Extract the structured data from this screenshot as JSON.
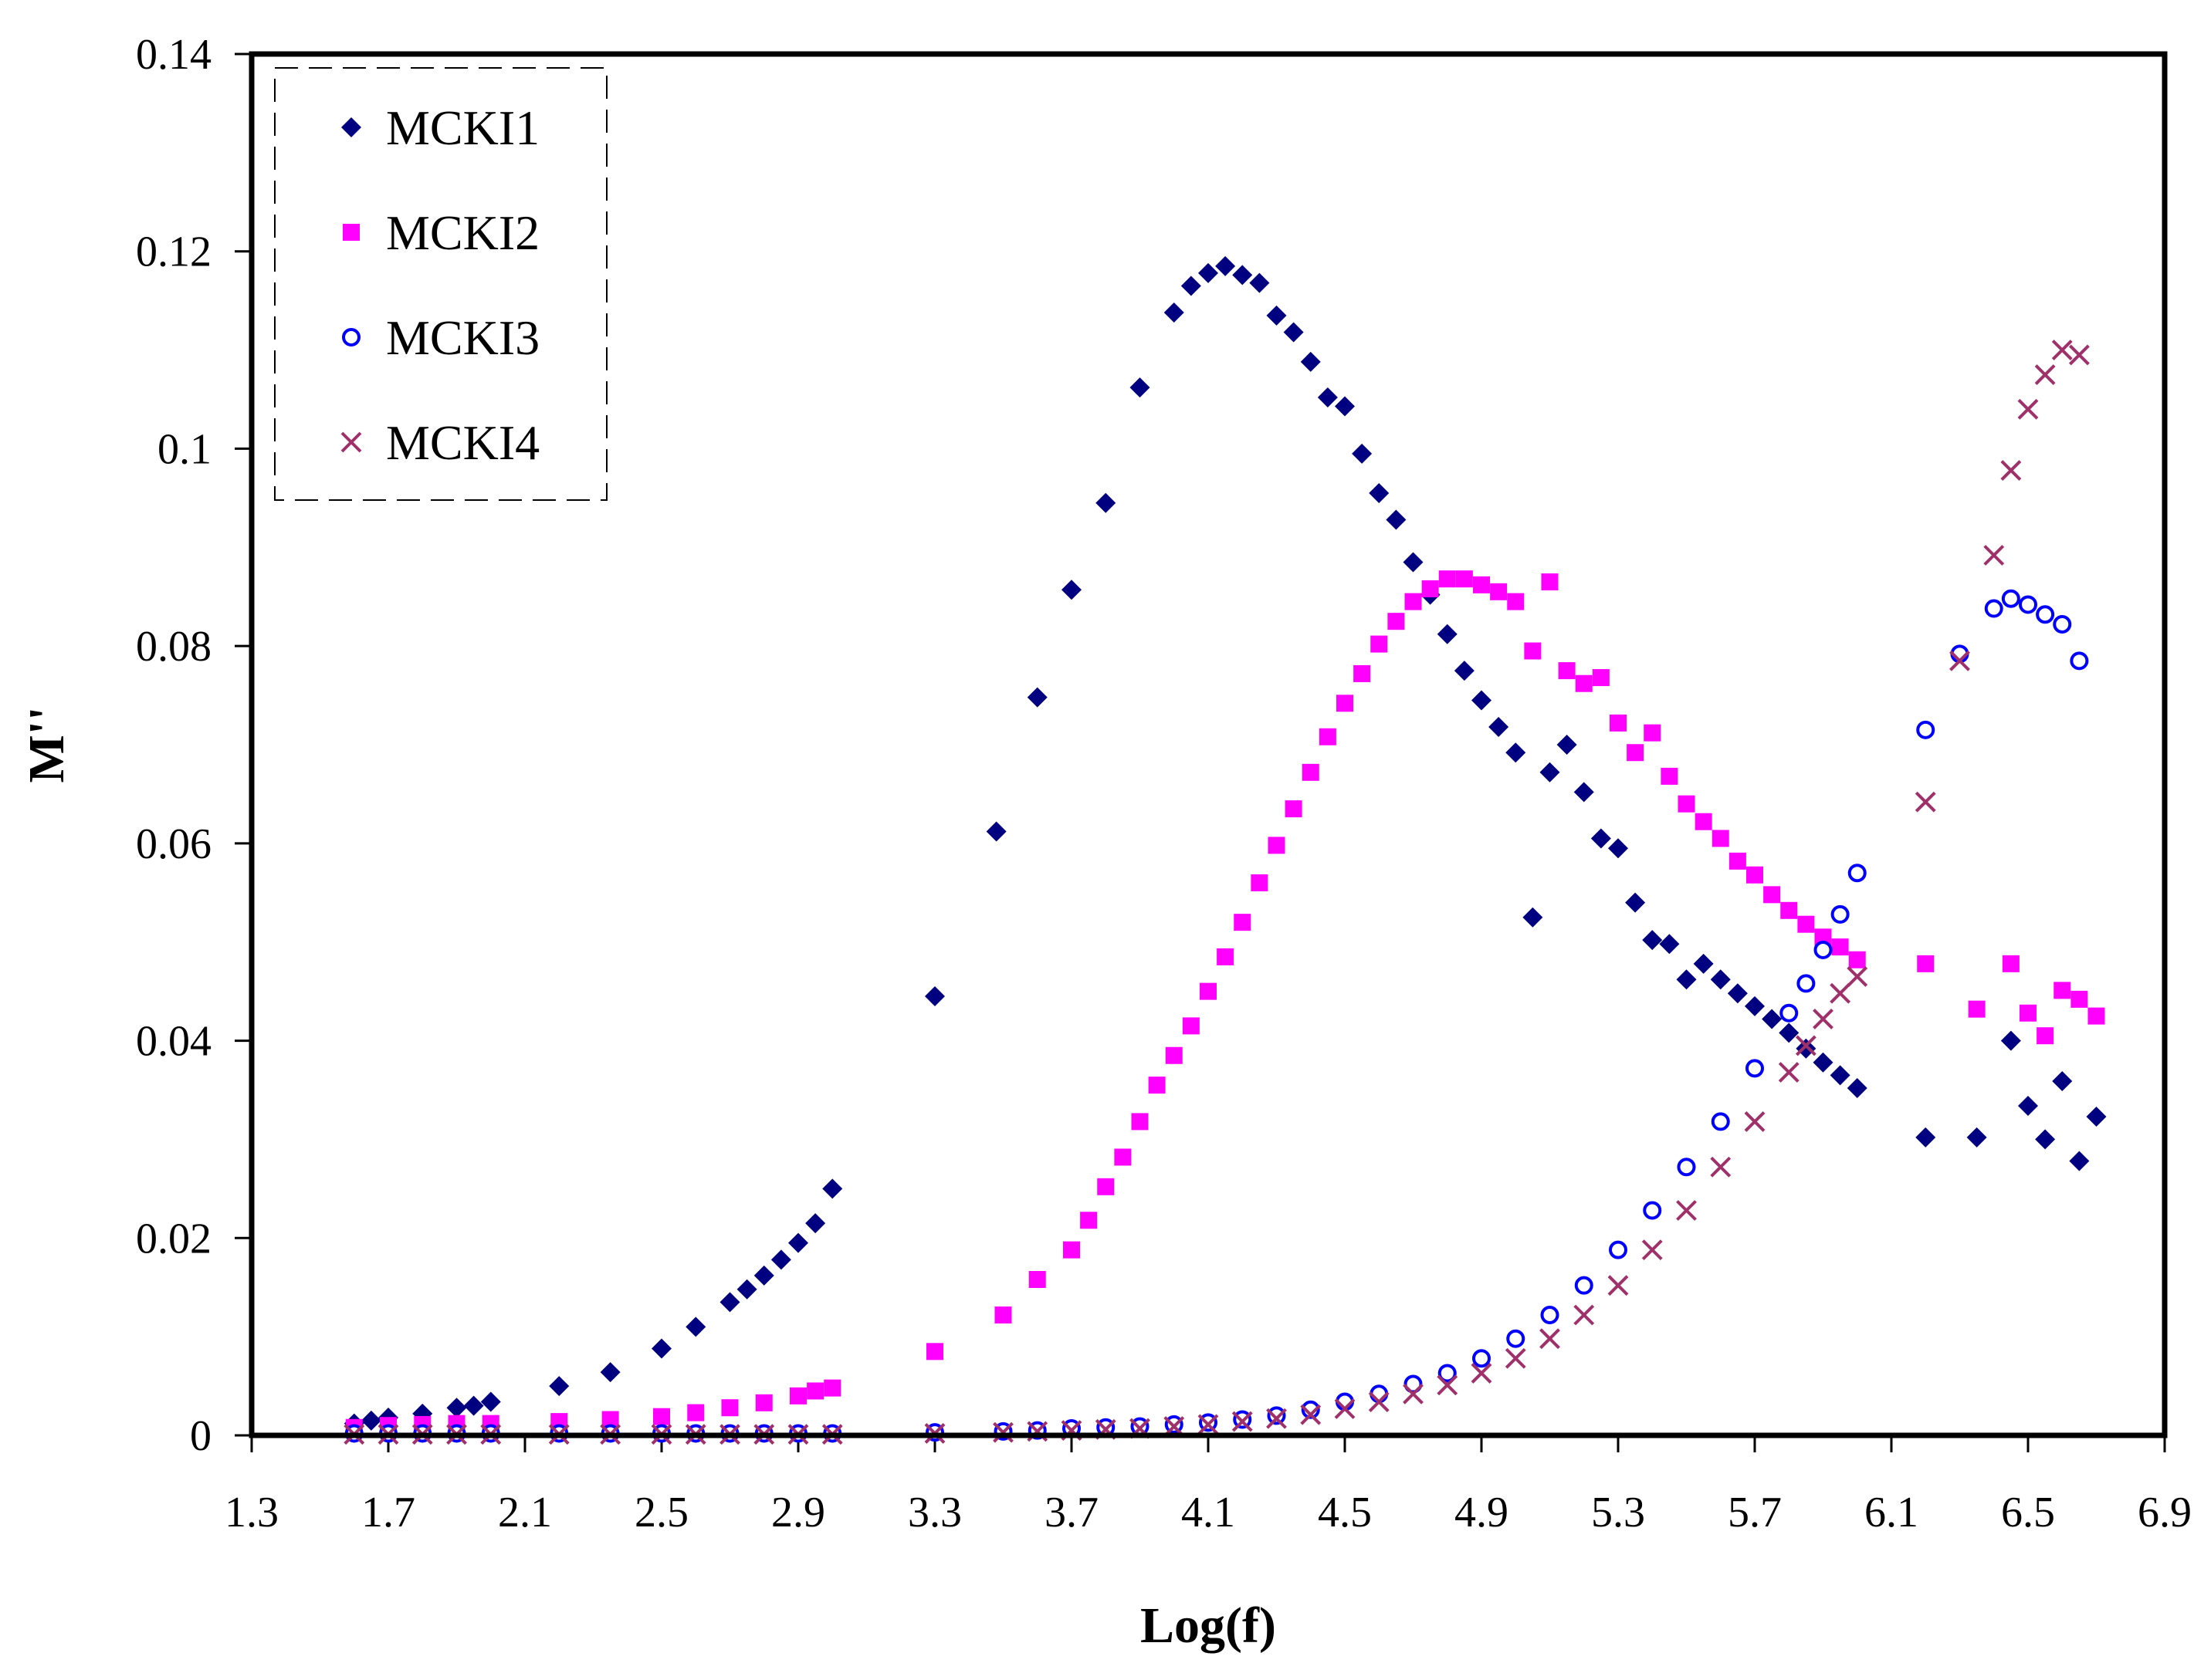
{
  "chart_data": {
    "type": "scatter",
    "title": "",
    "xlabel": "Log(f)",
    "ylabel": "M''",
    "xlim": [
      1.3,
      6.9
    ],
    "ylim": [
      0,
      0.14
    ],
    "x_ticks": [
      "1.3",
      "1.7",
      "2.1",
      "2.5",
      "2.9",
      "3.3",
      "3.7",
      "4.1",
      "4.5",
      "4.9",
      "5.3",
      "5.7",
      "6.1",
      "6.5",
      "6.9"
    ],
    "y_ticks": [
      "0",
      "0.02",
      "0.04",
      "0.06",
      "0.08",
      "0.1",
      "0.12",
      "0.14"
    ],
    "legend_position": "top-left",
    "series": [
      {
        "name": "MCKI1",
        "marker": "diamond",
        "color": "#000080",
        "x": [
          1.6,
          1.65,
          1.7,
          1.8,
          1.9,
          1.95,
          2.0,
          2.2,
          2.35,
          2.5,
          2.6,
          2.7,
          2.75,
          2.8,
          2.85,
          2.9,
          2.95,
          3.0,
          3.3,
          3.48,
          3.6,
          3.7,
          3.8,
          3.9,
          4.0,
          4.05,
          4.1,
          4.15,
          4.2,
          4.25,
          4.3,
          4.35,
          4.4,
          4.45,
          4.5,
          4.55,
          4.6,
          4.65,
          4.7,
          4.75,
          4.8,
          4.85,
          4.9,
          4.95,
          5.0,
          5.05,
          5.1,
          5.15,
          5.2,
          5.25,
          5.3,
          5.35,
          5.4,
          5.45,
          5.5,
          5.55,
          5.6,
          5.65,
          5.7,
          5.75,
          5.8,
          5.85,
          5.9,
          5.95,
          6.0,
          6.2,
          6.35,
          6.45,
          6.5,
          6.55,
          6.6,
          6.65,
          6.7
        ],
        "y": [
          0.0012,
          0.0015,
          0.0018,
          0.0022,
          0.0028,
          0.003,
          0.0034,
          0.005,
          0.0064,
          0.0088,
          0.011,
          0.0135,
          0.0148,
          0.0162,
          0.0178,
          0.0195,
          0.0215,
          0.025,
          0.0445,
          0.0612,
          0.0748,
          0.0857,
          0.0945,
          0.1062,
          0.1138,
          0.1165,
          0.1178,
          0.1185,
          0.1176,
          0.1168,
          0.1135,
          0.1118,
          0.1088,
          0.1052,
          0.1043,
          0.0995,
          0.0955,
          0.0928,
          0.0885,
          0.0852,
          0.0812,
          0.0775,
          0.0745,
          0.0718,
          0.0692,
          0.0525,
          0.0672,
          0.07,
          0.0652,
          0.0605,
          0.0595,
          0.054,
          0.0502,
          0.0498,
          0.0462,
          0.0478,
          0.0462,
          0.0448,
          0.0435,
          0.0422,
          0.0408,
          0.0392,
          0.0378,
          0.0365,
          0.0352,
          0.0302,
          0.0302,
          0.04,
          0.0334,
          0.03,
          0.0359,
          0.0278,
          0.0323
        ]
      },
      {
        "name": "MCKI2",
        "marker": "square",
        "color": "#ff00ff",
        "x": [
          1.6,
          1.7,
          1.8,
          1.9,
          2.0,
          2.2,
          2.35,
          2.5,
          2.6,
          2.7,
          2.8,
          2.9,
          2.95,
          3.0,
          3.3,
          3.5,
          3.6,
          3.7,
          3.75,
          3.8,
          3.85,
          3.9,
          3.95,
          4.0,
          4.05,
          4.1,
          4.15,
          4.2,
          4.25,
          4.3,
          4.35,
          4.4,
          4.45,
          4.5,
          4.55,
          4.6,
          4.65,
          4.7,
          4.75,
          4.8,
          4.85,
          4.9,
          4.95,
          5.0,
          5.05,
          5.1,
          5.15,
          5.2,
          5.25,
          5.3,
          5.35,
          5.4,
          5.45,
          5.5,
          5.55,
          5.6,
          5.65,
          5.7,
          5.75,
          5.8,
          5.85,
          5.9,
          5.95,
          6.0,
          6.2,
          6.35,
          6.45,
          6.5,
          6.55,
          6.6,
          6.65,
          6.7
        ],
        "y": [
          0.0008,
          0.001,
          0.0011,
          0.0012,
          0.0012,
          0.0014,
          0.0016,
          0.0019,
          0.0023,
          0.0028,
          0.0033,
          0.004,
          0.0045,
          0.0048,
          0.0085,
          0.0122,
          0.0158,
          0.0188,
          0.0218,
          0.0252,
          0.0282,
          0.0318,
          0.0355,
          0.0385,
          0.0415,
          0.045,
          0.0485,
          0.052,
          0.056,
          0.0598,
          0.0635,
          0.0672,
          0.0708,
          0.0742,
          0.0772,
          0.0802,
          0.0825,
          0.0845,
          0.0858,
          0.0868,
          0.0868,
          0.0862,
          0.0855,
          0.0845,
          0.0795,
          0.0865,
          0.0775,
          0.0762,
          0.0768,
          0.0722,
          0.0692,
          0.0712,
          0.0668,
          0.064,
          0.0622,
          0.0605,
          0.0582,
          0.0568,
          0.0548,
          0.0532,
          0.0518,
          0.0505,
          0.0495,
          0.0482,
          0.0478,
          0.0432,
          0.0478,
          0.0428,
          0.0405,
          0.0451,
          0.0442,
          0.0425
        ]
      },
      {
        "name": "MCKI3",
        "marker": "circle",
        "color": "#0000ff",
        "x": [
          1.6,
          1.7,
          1.8,
          1.9,
          2.0,
          2.2,
          2.35,
          2.5,
          2.6,
          2.7,
          2.8,
          2.9,
          3.0,
          3.3,
          3.5,
          3.6,
          3.7,
          3.8,
          3.9,
          4.0,
          4.1,
          4.2,
          4.3,
          4.4,
          4.5,
          4.6,
          4.7,
          4.8,
          4.9,
          5.0,
          5.1,
          5.2,
          5.3,
          5.4,
          5.5,
          5.6,
          5.7,
          5.8,
          5.85,
          5.9,
          5.95,
          6.0,
          6.2,
          6.3,
          6.4,
          6.45,
          6.5,
          6.55,
          6.6,
          6.65
        ],
        "y": [
          0.0002,
          0.0002,
          0.0002,
          0.0002,
          0.0002,
          0.0002,
          0.0002,
          0.0002,
          0.0002,
          0.0002,
          0.0002,
          0.0002,
          0.0002,
          0.0003,
          0.0004,
          0.0005,
          0.0007,
          0.0008,
          0.0009,
          0.0011,
          0.0013,
          0.0016,
          0.002,
          0.0026,
          0.0034,
          0.0042,
          0.0052,
          0.0063,
          0.0078,
          0.0098,
          0.0122,
          0.0152,
          0.0188,
          0.0228,
          0.0272,
          0.0318,
          0.0372,
          0.0428,
          0.0458,
          0.0492,
          0.0528,
          0.057,
          0.0715,
          0.0792,
          0.0838,
          0.0848,
          0.0842,
          0.0832,
          0.0822,
          0.0785
        ]
      },
      {
        "name": "MCKI4",
        "marker": "cross",
        "color": "#a0306a",
        "x": [
          1.6,
          1.7,
          1.8,
          1.9,
          2.0,
          2.2,
          2.35,
          2.5,
          2.6,
          2.7,
          2.8,
          2.9,
          3.0,
          3.3,
          3.5,
          3.6,
          3.7,
          3.8,
          3.9,
          4.0,
          4.1,
          4.2,
          4.3,
          4.4,
          4.5,
          4.6,
          4.7,
          4.8,
          4.9,
          5.0,
          5.1,
          5.2,
          5.3,
          5.4,
          5.5,
          5.6,
          5.7,
          5.8,
          5.85,
          5.9,
          5.95,
          6.0,
          6.2,
          6.3,
          6.4,
          6.45,
          6.5,
          6.55,
          6.6,
          6.65
        ],
        "y": [
          0.0001,
          0.0001,
          0.0001,
          0.0001,
          0.0001,
          0.0001,
          0.0001,
          0.0001,
          0.0001,
          0.0001,
          0.0001,
          0.0001,
          0.0001,
          0.0002,
          0.0003,
          0.0004,
          0.0005,
          0.0006,
          0.0007,
          0.0009,
          0.0011,
          0.0014,
          0.0017,
          0.0021,
          0.0027,
          0.0034,
          0.0042,
          0.0051,
          0.0063,
          0.0078,
          0.0098,
          0.0122,
          0.0152,
          0.0188,
          0.0228,
          0.0272,
          0.0318,
          0.0368,
          0.0395,
          0.0422,
          0.0448,
          0.0465,
          0.0642,
          0.0785,
          0.0892,
          0.0978,
          0.104,
          0.1075,
          0.11,
          0.1095
        ]
      }
    ]
  }
}
